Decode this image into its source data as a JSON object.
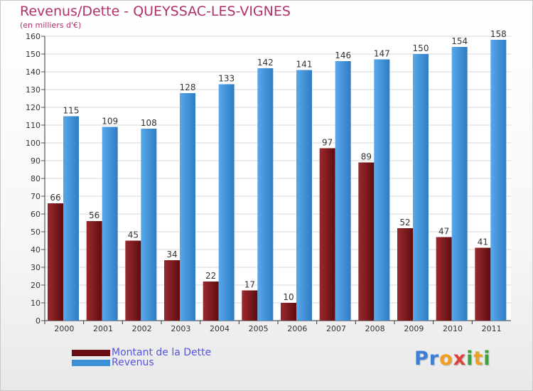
{
  "header": {
    "title": "Revenus/Dette - QUEYSSAC-LES-VIGNES",
    "subtitle": "(en milliers d'€)"
  },
  "colors": {
    "title": "#b0306a",
    "dette": "#7a1c20",
    "revenus": "#3d8fd6",
    "legend_text": "#5555dd"
  },
  "legend": [
    {
      "label": "Montant de la Dette",
      "color": "#6a0f14"
    },
    {
      "label": "Revenus",
      "color": "#3d8fd6"
    }
  ],
  "logo": {
    "text": "Proxiti",
    "letters": [
      {
        "ch": "P",
        "color": "#3b7fd9"
      },
      {
        "ch": "r",
        "color": "#3b7fd9"
      },
      {
        "ch": "o",
        "color": "#f0a020"
      },
      {
        "ch": "x",
        "color": "#e0403a"
      },
      {
        "ch": "i",
        "color": "#3aa040"
      },
      {
        "ch": "t",
        "color": "#f0a020"
      },
      {
        "ch": "i",
        "color": "#3aa040"
      }
    ]
  },
  "chart_data": {
    "type": "bar",
    "title": "Revenus/Dette - QUEYSSAC-LES-VIGNES",
    "subtitle": "(en milliers d'€)",
    "categories": [
      "2000",
      "2001",
      "2002",
      "2003",
      "2004",
      "2005",
      "2006",
      "2007",
      "2008",
      "2009",
      "2010",
      "2011"
    ],
    "series": [
      {
        "name": "Montant de la Dette",
        "color": "#7a1c20",
        "values": [
          66,
          56,
          45,
          34,
          22,
          17,
          10,
          97,
          89,
          52,
          47,
          41
        ]
      },
      {
        "name": "Revenus",
        "color": "#3d8fd6",
        "values": [
          115,
          109,
          108,
          128,
          133,
          142,
          141,
          146,
          147,
          150,
          154,
          158
        ]
      }
    ],
    "ylim": [
      0,
      160
    ],
    "yticks": [
      0,
      10,
      20,
      30,
      40,
      50,
      60,
      70,
      80,
      90,
      100,
      110,
      120,
      130,
      140,
      150,
      160
    ],
    "grid": true,
    "legend_position": "bottom-left",
    "data_labels": true
  }
}
